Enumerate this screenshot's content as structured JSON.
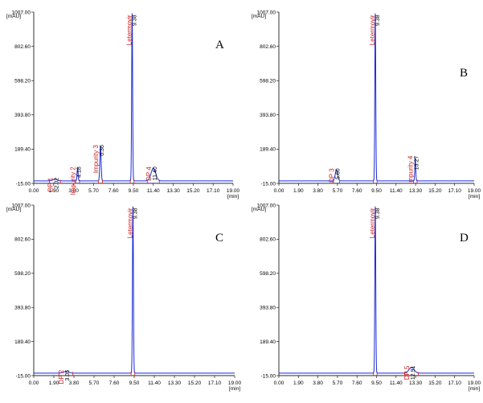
{
  "common": {
    "y_unit": "[mAU]",
    "x_unit": "[min]",
    "y_ticks": [
      "1007.00",
      "802.60",
      "598.20",
      "393.80",
      "189.40",
      "-15.00"
    ],
    "x_ticks": [
      "0.00",
      "1.90",
      "3.80",
      "5.70",
      "7.60",
      "9.50",
      "11.40",
      "13.30",
      "15.20",
      "17.10",
      "19.00"
    ],
    "colors": {
      "trace": "#1a2bd6",
      "baseline": "#1a2bd6",
      "label": "#d02020",
      "axis": "#000000"
    }
  },
  "chart_data": [
    {
      "type": "line",
      "panel": "A",
      "xlabel": "[min]",
      "ylabel": "[mAU]",
      "xlim": [
        0,
        19
      ],
      "ylim": [
        -15,
        1007
      ],
      "peaks": [
        {
          "name": "DP 1",
          "rt": 2.02,
          "rt_label": "2.02",
          "height": 10,
          "width": 0.2
        },
        {
          "name": "Impurity 2",
          "rt": 4.18,
          "rt_label": "4.18",
          "height": 75,
          "width": 0.05
        },
        {
          "name": "Impurity 3",
          "rt": 6.36,
          "rt_label": "6.36",
          "height": 205,
          "width": 0.06
        },
        {
          "name": "Letermovir",
          "rt": 9.38,
          "rt_label": "9.38",
          "height": 1000,
          "width": 0.045
        },
        {
          "name": "DP 4",
          "rt": 11.4,
          "rt_label": "11.40",
          "height": 75,
          "width": 0.22
        }
      ]
    },
    {
      "type": "line",
      "panel": "B",
      "xlabel": "[min]",
      "ylabel": "[mAU]",
      "xlim": [
        0,
        19
      ],
      "ylim": [
        -15,
        1007
      ],
      "peaks": [
        {
          "name": "DP 3",
          "rt": 5.6,
          "rt_label": "5.60",
          "height": 65,
          "width": 0.12
        },
        {
          "name": "Letermovir",
          "rt": 9.38,
          "rt_label": "9.38",
          "height": 1000,
          "width": 0.045
        },
        {
          "name": "Impurity 4",
          "rt": 13.27,
          "rt_label": "13.27",
          "height": 140,
          "width": 0.045
        }
      ]
    },
    {
      "type": "line",
      "panel": "C",
      "xlabel": "[min]",
      "ylabel": "[mAU]",
      "xlim": [
        0,
        19
      ],
      "ylim": [
        -15,
        1007
      ],
      "peaks": [
        {
          "name": "DP 2",
          "rt": 3.05,
          "rt_label": "3.05",
          "height": 10,
          "width": 0.25
        },
        {
          "name": "Letermovir",
          "rt": 9.38,
          "rt_label": "9.38",
          "height": 1000,
          "width": 0.045
        }
      ]
    },
    {
      "type": "line",
      "panel": "D",
      "xlabel": "[min]",
      "ylabel": "[mAU]",
      "xlim": [
        0,
        19
      ],
      "ylim": [
        -15,
        1007
      ],
      "peaks": [
        {
          "name": "Letermovir",
          "rt": 9.38,
          "rt_label": "9.38",
          "height": 1000,
          "width": 0.045
        },
        {
          "name": "DP 5",
          "rt": 12.91,
          "rt_label": "12.91",
          "height": 35,
          "width": 0.25
        }
      ]
    }
  ]
}
